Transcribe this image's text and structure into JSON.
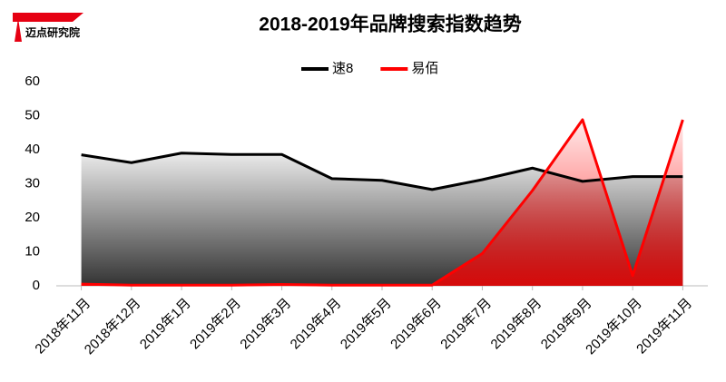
{
  "logo_text": "迈点研究院",
  "chart_data": {
    "type": "area",
    "title": "2018-2019年品牌搜索指数趋势",
    "categories": [
      "2018年11月",
      "2018年12月",
      "2019年1月",
      "2019年2月",
      "2019年3月",
      "2019年4月",
      "2019年5月",
      "2019年6月",
      "2019年7月",
      "2019年8月",
      "2019年9月",
      "2019年10月",
      "2019年11月"
    ],
    "series": [
      {
        "name": "速8",
        "color": "#000000",
        "values": [
          38.5,
          36.2,
          39,
          38.6,
          38.6,
          31.5,
          31,
          28.3,
          31.2,
          34.6,
          30.7,
          32.1,
          32.1
        ]
      },
      {
        "name": "易佰",
        "color": "#ff0000",
        "values": [
          0.5,
          0.2,
          0.2,
          0.2,
          0.4,
          0.2,
          0.2,
          0.2,
          9.5,
          28,
          48.8,
          3,
          48.8
        ]
      }
    ],
    "ylim": [
      0,
      60
    ],
    "yticks": [
      0,
      10,
      20,
      30,
      40,
      50,
      60
    ],
    "grid": false,
    "legend": "top"
  }
}
